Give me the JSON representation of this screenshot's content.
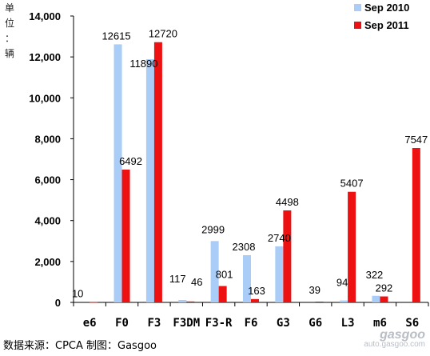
{
  "chart_data": {
    "type": "bar",
    "unit_label": "单位：辆",
    "categories": [
      "e6",
      "F0",
      "F3",
      "F3DM",
      "F3-R",
      "F6",
      "G3",
      "G6",
      "L3",
      "m6",
      "S6"
    ],
    "series": [
      {
        "name": "Sep 2010",
        "color": "#a9cdf7",
        "values": [
          null,
          12615,
          11890,
          117,
          2999,
          2308,
          2740,
          null,
          94,
          322,
          null
        ]
      },
      {
        "name": "Sep 2011",
        "color": "#ee1111",
        "values": [
          10,
          6492,
          12720,
          46,
          801,
          163,
          4498,
          39,
          5407,
          292,
          7547
        ]
      }
    ],
    "yticks": [
      "0",
      "2,000",
      "4,000",
      "6,000",
      "8,000",
      "10,000",
      "12,000",
      "14,000"
    ],
    "ylim": [
      0,
      14000
    ],
    "legend_position": "top-right",
    "grid": false
  },
  "footer": {
    "source": "数据来源：CPCA  制图：Gasgoo"
  },
  "watermark": {
    "brand": "gasgoo",
    "url": "auto.gasgoo.com"
  }
}
